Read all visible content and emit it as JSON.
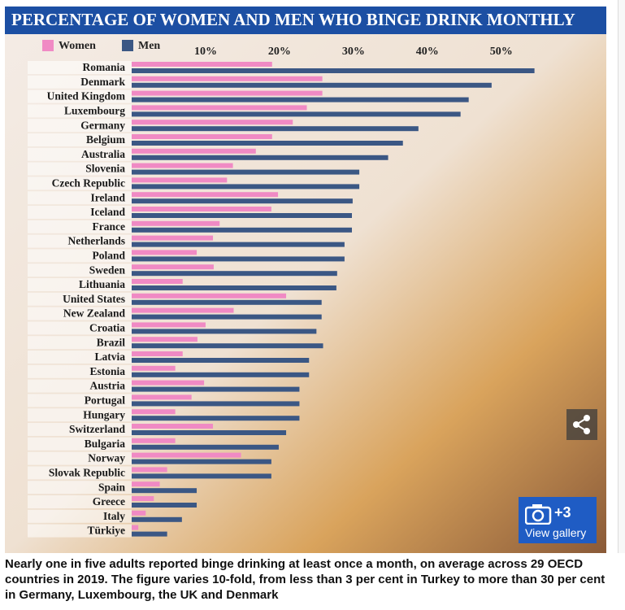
{
  "chart_data": {
    "type": "hbar",
    "title": "PERCENTAGE OF WOMEN AND MEN WHO BINGE DRINK MONTHLY",
    "categories": [
      "Romania",
      "Denmark",
      "United Kingdom",
      "Luxembourg",
      "Germany",
      "Belgium",
      "Australia",
      "Slovenia",
      "Czech Republic",
      "Ireland",
      "Iceland",
      "France",
      "Netherlands",
      "Poland",
      "Sweden",
      "Lithuania",
      "United States",
      "New Zealand",
      "Croatia",
      "Brazil",
      "Latvia",
      "Estonia",
      "Austria",
      "Portugal",
      "Hungary",
      "Switzerland",
      "Bulgaria",
      "Norway",
      "Slovak Republic",
      "Spain",
      "Greece",
      "Italy",
      "Türkiye"
    ],
    "series": [
      {
        "name": "Women",
        "color": "#f08ac4",
        "values": [
          19,
          25.8,
          25.8,
          23.7,
          21.8,
          19,
          16.8,
          13.7,
          12.9,
          19.8,
          18.9,
          11.9,
          11,
          8.8,
          11.1,
          6.9,
          20.9,
          13.8,
          10,
          8.9,
          6.9,
          5.9,
          9.8,
          8.1,
          5.9,
          11,
          5.9,
          14.8,
          4.8,
          3.8,
          3,
          1.9,
          0.9
        ]
      },
      {
        "name": "Men",
        "color": "#3b5784",
        "values": [
          54.5,
          48.7,
          45.6,
          44.5,
          38.8,
          36.7,
          34.7,
          30.8,
          30.8,
          29.9,
          29.8,
          29.8,
          28.8,
          28.8,
          27.8,
          27.7,
          25.7,
          25.7,
          25,
          25.9,
          24,
          24,
          22.7,
          22.7,
          22.7,
          20.9,
          19.9,
          18.9,
          18.9,
          8.8,
          8.8,
          6.8,
          4.8
        ]
      }
    ],
    "xlim": [
      0,
      64
    ],
    "xticks": [
      {
        "value": 10,
        "label": "10%"
      },
      {
        "value": 20,
        "label": "20%"
      },
      {
        "value": 30,
        "label": "30%"
      },
      {
        "value": 40,
        "label": "40%"
      },
      {
        "value": 50,
        "label": "50%"
      }
    ],
    "legend": "top-left"
  },
  "caption": "Nearly one in five adults reported binge drinking at least once a month, on average across 29 OECD countries in 2019. The figure varies 10-fold, from less than 3 per cent in Turkey to more than 30 per cent in Germany, Luxembourg, the UK and Denmark",
  "gallery": {
    "count": "+3",
    "label": "View gallery"
  }
}
